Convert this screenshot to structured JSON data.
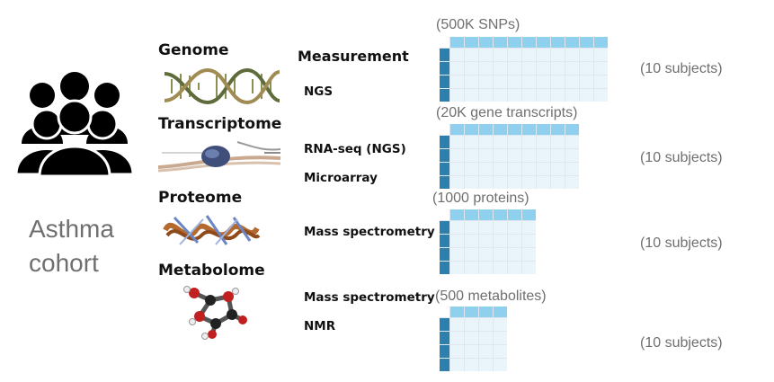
{
  "cohort": {
    "line1": "Asthma",
    "line2": "cohort",
    "icon": "people-group-icon"
  },
  "measurement_heading": "Measurement",
  "omics": [
    {
      "label": "Genome",
      "image": "dna-double-helix-image",
      "methods": [
        "NGS"
      ],
      "features": "(500K SNPs)",
      "subjects": "(10 subjects)",
      "feature_columns": 11,
      "subject_rows": 4
    },
    {
      "label": "Transcriptome",
      "image": "transcription-ribosome-image",
      "methods": [
        "RNA-seq (NGS)",
        "Microarray"
      ],
      "features": "(20K gene transcripts)",
      "subjects": "(10 subjects)",
      "feature_columns": 9,
      "subject_rows": 4
    },
    {
      "label": "Proteome",
      "image": "protein-structure-image",
      "methods": [
        "Mass spectrometry"
      ],
      "features": "(1000 proteins)",
      "subjects": "(10 subjects)",
      "feature_columns": 6,
      "subject_rows": 4
    },
    {
      "label": "Metabolome",
      "image": "metabolite-molecule-image",
      "methods": [
        "Mass spectrometry",
        "NMR"
      ],
      "features": "(500 metabolites)",
      "subjects": "(10 subjects)",
      "feature_columns": 4,
      "subject_rows": 4
    }
  ],
  "colors": {
    "header_cells": "#8fd0ef",
    "subject_cells": "#2d7fae",
    "data_cells": "#eaf4fb",
    "grey_text": "#6f6f6f"
  }
}
